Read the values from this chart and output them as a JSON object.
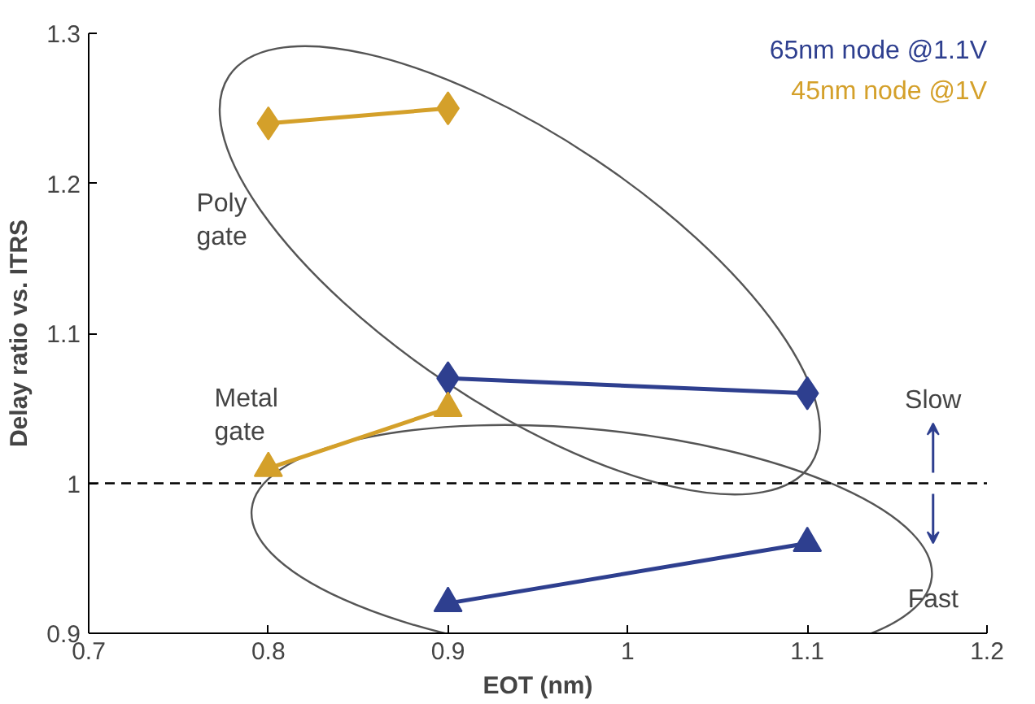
{
  "chart_data": {
    "type": "line",
    "xlabel": "EOT (nm)",
    "ylabel": "Delay ratio vs. ITRS",
    "xlim": [
      0.7,
      1.2
    ],
    "xticks": [
      0.7,
      0.8,
      0.9,
      {
        "value": 1,
        "label": "1"
      },
      1.1,
      1.2
    ],
    "ylim": [
      0.9,
      1.3
    ],
    "yticks": [
      0.9,
      {
        "value": 1,
        "label": "1"
      },
      1.1,
      1.2,
      1.3
    ],
    "series": [
      {
        "name": "65nm node @1.1V",
        "color": "#2e3f8f",
        "marker": "diamond",
        "x": [
          0.9,
          1.1
        ],
        "values": [
          1.07,
          1.06
        ]
      },
      {
        "name": "45nm node @1V",
        "color": "#d4a02a",
        "marker": "diamond",
        "x": [
          0.8,
          0.9
        ],
        "values": [
          1.24,
          1.25
        ]
      },
      {
        "color": "#2e3f8f",
        "marker": "triangle",
        "x": [
          0.9,
          1.1
        ],
        "values": [
          0.92,
          0.96
        ]
      },
      {
        "color": "#d4a02a",
        "marker": "triangle",
        "x": [
          0.8,
          0.9
        ],
        "values": [
          1.01,
          1.05
        ]
      }
    ],
    "ref_lines": [
      {
        "axis": "y",
        "value": 1,
        "color": "#000000",
        "line_style": "dashed"
      }
    ],
    "annotations": [
      "Poly gate",
      "Metal gate",
      "Slow",
      "Fast"
    ],
    "grid": false
  }
}
